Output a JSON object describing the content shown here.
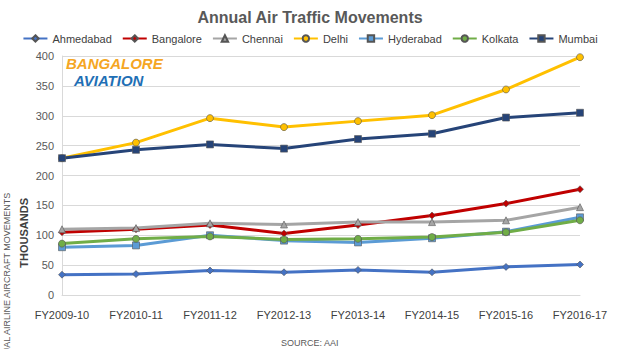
{
  "chart_data": {
    "type": "line",
    "title": "Annual Air Traffic Movements",
    "y_label": "ANNUAL AIRLINE AIRCRAFT MOVEMENTS",
    "y_unit": "THOUSANDS",
    "source": "SOURCE: AAI",
    "annotations": [
      "BANGALORE",
      "AVIATION"
    ],
    "categories": [
      "FY2009-10",
      "FY2010-11",
      "FY2011-12",
      "FY2012-13",
      "FY2013-14",
      "FY2014-15",
      "FY2015-16",
      "FY2016-17"
    ],
    "series": [
      {
        "name": "Ahmedabad",
        "color": "#4472c4",
        "marker": "diamond",
        "values": [
          34,
          35,
          41,
          38,
          42,
          38,
          47,
          51
        ]
      },
      {
        "name": "Bangalore",
        "color": "#c00000",
        "marker": "diamond",
        "values": [
          105,
          110,
          117,
          103,
          117,
          133,
          153,
          177
        ]
      },
      {
        "name": "Chennai",
        "color": "#a5a5a5",
        "marker": "triangle",
        "values": [
          110,
          112,
          120,
          118,
          122,
          122,
          125,
          147
        ]
      },
      {
        "name": "Delhi",
        "color": "#ffc000",
        "marker": "circle",
        "values": [
          229,
          255,
          296,
          281,
          291,
          301,
          344,
          398
        ]
      },
      {
        "name": "Hyderabad",
        "color": "#5b9bd5",
        "marker": "square",
        "values": [
          80,
          83,
          100,
          91,
          88,
          95,
          106,
          130
        ]
      },
      {
        "name": "Kolkata",
        "color": "#70ad47",
        "marker": "circle",
        "values": [
          86,
          94,
          98,
          93,
          94,
          97,
          105,
          125
        ]
      },
      {
        "name": "Mumbai",
        "color": "#264478",
        "marker": "square",
        "values": [
          229,
          243,
          252,
          245,
          261,
          270,
          297,
          305
        ]
      }
    ],
    "ylim": [
      0,
      400
    ],
    "yticks": [
      0,
      50,
      100,
      150,
      200,
      250,
      300,
      350,
      400
    ],
    "grid": true,
    "legend": "top"
  }
}
